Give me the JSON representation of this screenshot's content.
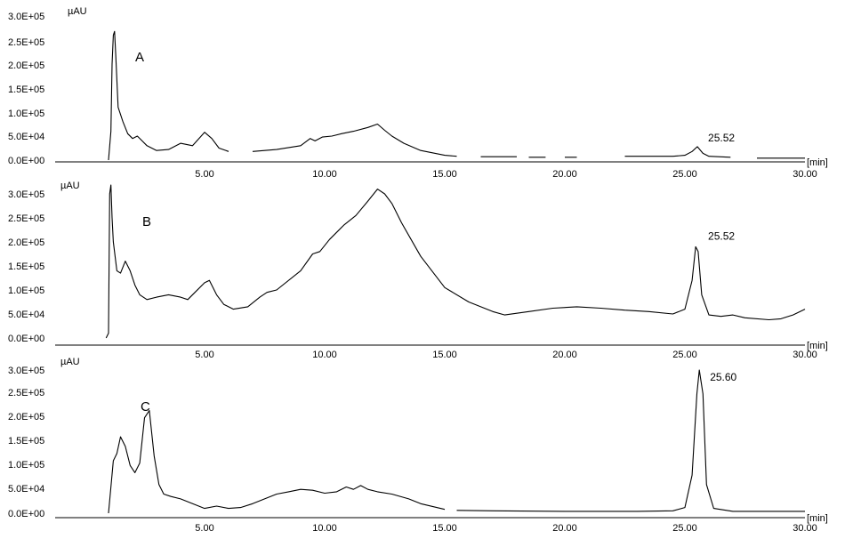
{
  "chart_data": [
    {
      "type": "line",
      "panel_label": "A",
      "ylabel": "µAU",
      "xlabel": "[min]",
      "x_tick_labels": [
        "5.00",
        "10.00",
        "15.00",
        "20.00",
        "25.00",
        "30.00"
      ],
      "x_ticks": [
        5,
        10,
        15,
        20,
        25,
        30
      ],
      "xlim": [
        0,
        30
      ],
      "y_tick_labels": [
        "0.0E+00",
        "5.0E+04",
        "1.0E+05",
        "1.5E+05",
        "2.0E+05",
        "2.5E+05",
        "3.0E+05"
      ],
      "y_ticks": [
        0,
        50000,
        100000,
        150000,
        200000,
        250000,
        300000
      ],
      "ylim": [
        0,
        300000
      ],
      "annotations": [
        {
          "text": "25.52",
          "x": 25.52,
          "y": 24000
        }
      ],
      "series": [
        {
          "x": [
            1.0,
            1.1,
            1.15,
            1.2,
            1.25,
            1.3,
            1.4,
            1.6,
            1.8,
            2.0,
            2.2,
            2.4,
            2.6,
            3.0,
            3.5,
            4.0,
            4.5,
            5.0,
            5.3,
            5.6,
            6.0,
            null,
            7.0,
            8.0,
            9.0,
            9.4,
            9.6,
            9.9,
            10.3,
            10.7,
            11.2,
            11.8,
            12.2,
            12.5,
            12.8,
            13.3,
            14.0,
            15.0,
            15.5,
            null,
            16.5,
            18.0,
            null,
            18.5,
            19.2,
            null,
            20.0,
            20.5,
            null,
            22.5,
            24.5,
            25.0,
            25.3,
            25.52,
            25.75,
            26.0,
            26.9,
            null,
            28.0,
            30.0
          ],
          "y": [
            0,
            60000,
            200000,
            260000,
            268000,
            220000,
            110000,
            80000,
            55000,
            45000,
            50000,
            40000,
            30000,
            20000,
            22000,
            35000,
            30000,
            58000,
            45000,
            25000,
            18000,
            null,
            18000,
            22000,
            30000,
            45000,
            40000,
            48000,
            50000,
            55000,
            60000,
            68000,
            75000,
            62000,
            50000,
            35000,
            20000,
            10000,
            8000,
            null,
            7000,
            7000,
            null,
            6000,
            6000,
            null,
            6000,
            6000,
            null,
            8000,
            8000,
            10000,
            18000,
            28000,
            14000,
            8000,
            6000,
            null,
            4000,
            4000
          ]
        }
      ]
    },
    {
      "type": "line",
      "panel_label": "B",
      "ylabel": "µAU",
      "xlabel": "[min]",
      "x_tick_labels": [
        "5.00",
        "10.00",
        "15.00",
        "20.00",
        "25.00",
        "30.00"
      ],
      "x_ticks": [
        5,
        10,
        15,
        20,
        25,
        30
      ],
      "xlim": [
        0,
        30
      ],
      "y_tick_labels": [
        "0.0E+00",
        "5.0E+04",
        "1.0E+05",
        "1.5E+05",
        "2.0E+05",
        "2.5E+05",
        "3.0E+05"
      ],
      "y_ticks": [
        0,
        50000,
        100000,
        150000,
        200000,
        250000,
        300000
      ],
      "ylim": [
        0,
        300000
      ],
      "annotations": [
        {
          "text": "25.52",
          "x": 25.52,
          "y": 190000
        }
      ],
      "series": [
        {
          "x": [
            0.9,
            1.0,
            1.05,
            1.1,
            1.15,
            1.2,
            1.35,
            1.5,
            1.7,
            1.9,
            2.1,
            2.3,
            2.6,
            3.0,
            3.5,
            4.0,
            4.3,
            4.6,
            5.0,
            5.2,
            5.5,
            5.8,
            6.2,
            6.8,
            7.3,
            7.6,
            8.0,
            9.0,
            9.5,
            9.8,
            10.2,
            10.8,
            11.3,
            11.8,
            12.2,
            12.5,
            12.8,
            13.2,
            14.0,
            15.0,
            16.0,
            17.0,
            17.5,
            18.5,
            19.5,
            20.5,
            21.5,
            22.5,
            23.5,
            24.5,
            25.0,
            25.3,
            25.45,
            25.55,
            25.7,
            26.0,
            26.5,
            27.0,
            27.5,
            28.5,
            29.0,
            29.5,
            30.0
          ],
          "y": [
            0,
            10000,
            300000,
            320000,
            250000,
            200000,
            140000,
            135000,
            160000,
            140000,
            110000,
            90000,
            80000,
            85000,
            90000,
            85000,
            80000,
            95000,
            115000,
            120000,
            90000,
            70000,
            60000,
            65000,
            85000,
            95000,
            100000,
            140000,
            175000,
            180000,
            205000,
            235000,
            255000,
            285000,
            310000,
            300000,
            280000,
            240000,
            170000,
            105000,
            75000,
            55000,
            48000,
            55000,
            62000,
            65000,
            62000,
            58000,
            55000,
            50000,
            60000,
            120000,
            190000,
            180000,
            90000,
            48000,
            45000,
            48000,
            42000,
            38000,
            40000,
            48000,
            60000
          ]
        }
      ]
    },
    {
      "type": "line",
      "panel_label": "C",
      "ylabel": "µAU",
      "xlabel": "[min]",
      "x_tick_labels": [
        "5.00",
        "10.00",
        "15.00",
        "20.00",
        "25.00",
        "30.00"
      ],
      "x_ticks": [
        5,
        10,
        15,
        20,
        25,
        30
      ],
      "xlim": [
        0,
        30
      ],
      "y_tick_labels": [
        "0.0E+00",
        "5.0E+04",
        "1.0E+05",
        "1.5E+05",
        "2.0E+05",
        "2.5E+05",
        "3.0E+05"
      ],
      "y_ticks": [
        0,
        50000,
        100000,
        150000,
        200000,
        250000,
        300000
      ],
      "ylim": [
        0,
        300000
      ],
      "annotations": [
        {
          "text": "25.60",
          "x": 25.6,
          "y": 300000
        }
      ],
      "series": [
        {
          "x": [
            1.0,
            1.2,
            1.35,
            1.5,
            1.7,
            1.9,
            2.1,
            2.3,
            2.5,
            2.7,
            2.9,
            3.1,
            3.3,
            3.6,
            4.0,
            4.5,
            5.0,
            5.5,
            6.0,
            6.5,
            7.0,
            7.5,
            8.0,
            8.5,
            9.0,
            9.5,
            10.0,
            10.5,
            10.9,
            11.2,
            11.5,
            11.8,
            12.2,
            12.8,
            13.5,
            14.0,
            15.0,
            null,
            15.5,
            17.0,
            20.0,
            23.0,
            24.5,
            25.0,
            25.3,
            25.5,
            25.6,
            25.75,
            25.9,
            26.2,
            27.0,
            30.0
          ],
          "y": [
            0,
            110000,
            125000,
            160000,
            140000,
            100000,
            85000,
            105000,
            200000,
            215000,
            120000,
            60000,
            40000,
            35000,
            30000,
            20000,
            10000,
            15000,
            10000,
            12000,
            20000,
            30000,
            40000,
            45000,
            50000,
            48000,
            42000,
            45000,
            55000,
            50000,
            58000,
            50000,
            45000,
            40000,
            30000,
            20000,
            8000,
            null,
            6000,
            5000,
            4000,
            4000,
            5000,
            12000,
            80000,
            250000,
            300000,
            250000,
            60000,
            10000,
            4000,
            4000
          ]
        }
      ]
    }
  ]
}
